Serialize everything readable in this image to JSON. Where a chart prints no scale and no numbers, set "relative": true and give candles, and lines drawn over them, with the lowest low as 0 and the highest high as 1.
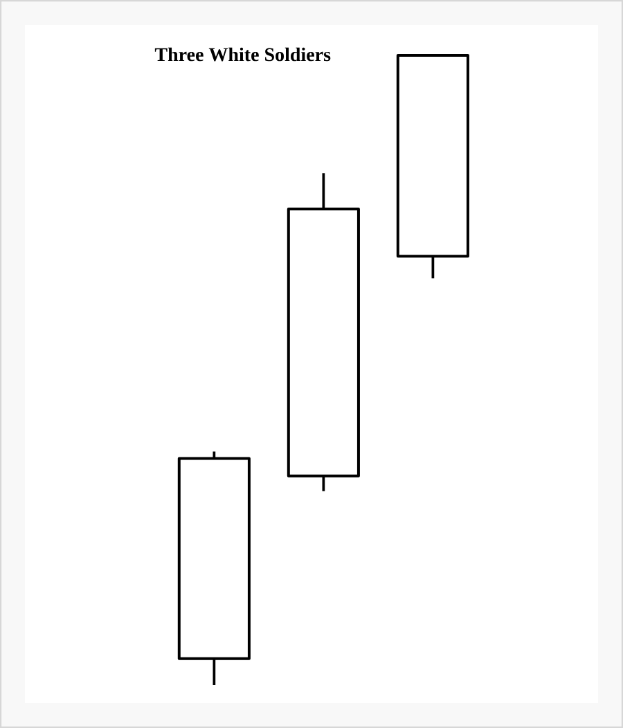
{
  "chart_data": {
    "type": "candlestick",
    "title": "Three White Soldiers",
    "relative": true,
    "categories": [
      null,
      null,
      null
    ],
    "ohlc": [
      [
        0.042,
        0.371,
        0,
        0.36
      ],
      [
        0.332,
        0.813,
        0.308,
        0.756
      ],
      [
        0.681,
        1,
        0.646,
        1
      ]
    ]
  }
}
